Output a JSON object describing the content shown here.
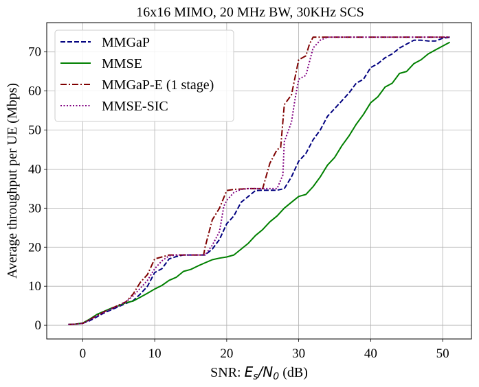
{
  "chart_data": {
    "type": "line",
    "title": "16x16 MIMO, 20 MHz BW, 30KHz SCS",
    "xlabel_prefix": "SNR: ",
    "xlabel_math_main": "E",
    "xlabel_math_sub1": "s",
    "xlabel_math_sep": "/",
    "xlabel_math_main2": "N",
    "xlabel_math_sub2": "0",
    "xlabel_suffix": " (dB)",
    "ylabel": "Average throughput per UE (Mbps)",
    "xlim": [
      -5,
      54
    ],
    "ylim": [
      -3.5,
      77.5
    ],
    "xticks": [
      0,
      10,
      20,
      30,
      40,
      50
    ],
    "yticks": [
      0,
      10,
      20,
      30,
      40,
      50,
      60,
      70
    ],
    "grid": true,
    "legend_position": "top-left",
    "series": [
      {
        "name": "MMGaP",
        "color": "#00007f",
        "dash": "dashed",
        "x": [
          -2,
          -1,
          0,
          1,
          2,
          3,
          4,
          5,
          6,
          7,
          8,
          9,
          10,
          11,
          12,
          13,
          14,
          15,
          16,
          17,
          18,
          19,
          20,
          21,
          22,
          23,
          24,
          25,
          26,
          27,
          28,
          29,
          30,
          31,
          32,
          33,
          34,
          35,
          36,
          37,
          38,
          39,
          40,
          41,
          42,
          43,
          44,
          45,
          46,
          47,
          48,
          49,
          50,
          51
        ],
        "y": [
          0.2,
          0.3,
          0.5,
          1.2,
          2.2,
          3.2,
          4.0,
          4.8,
          5.6,
          6.3,
          8.0,
          10.0,
          13.5,
          14.5,
          17.0,
          17.6,
          18.0,
          18.0,
          18.0,
          18.0,
          19.5,
          22.0,
          26.0,
          28.0,
          31.5,
          33.0,
          34.5,
          34.6,
          34.6,
          34.6,
          35.0,
          38.0,
          42.0,
          44.0,
          47.5,
          50.0,
          53.5,
          55.5,
          57.5,
          59.5,
          62.0,
          63.0,
          66.0,
          67.0,
          68.5,
          69.5,
          71.0,
          72.0,
          73.0,
          73.0,
          72.8,
          72.8,
          73.5,
          73.8
        ]
      },
      {
        "name": "MMSE",
        "color": "#008000",
        "dash": "solid",
        "x": [
          -2,
          -1,
          0,
          1,
          2,
          3,
          4,
          5,
          6,
          7,
          8,
          9,
          10,
          11,
          12,
          13,
          14,
          15,
          16,
          17,
          18,
          19,
          20,
          21,
          22,
          23,
          24,
          25,
          26,
          27,
          28,
          29,
          30,
          31,
          32,
          33,
          34,
          35,
          36,
          37,
          38,
          39,
          40,
          41,
          42,
          43,
          44,
          45,
          46,
          47,
          48,
          49,
          50,
          51
        ],
        "y": [
          0.2,
          0.3,
          0.6,
          1.6,
          2.8,
          3.6,
          4.4,
          5.0,
          5.8,
          6.2,
          7.2,
          8.2,
          9.3,
          10.2,
          11.5,
          12.3,
          13.8,
          14.3,
          15.2,
          16.0,
          16.8,
          17.2,
          17.5,
          18.0,
          19.5,
          21.0,
          23.0,
          24.5,
          26.5,
          28.0,
          30.0,
          31.5,
          33.0,
          33.5,
          35.5,
          38.0,
          41.0,
          43.0,
          46.0,
          48.5,
          51.5,
          54.0,
          57.0,
          58.5,
          61.0,
          62.0,
          64.5,
          65.0,
          67.0,
          68.0,
          69.5,
          70.5,
          71.5,
          72.5
        ]
      },
      {
        "name": "MMGaP-E (1 stage)",
        "color": "#7f0000",
        "dash": "dashdot",
        "x": [
          -2,
          -1,
          0,
          1,
          2,
          3,
          4,
          5,
          6,
          7,
          8,
          9,
          10,
          11,
          12,
          13,
          14,
          15,
          16,
          16.8,
          17,
          18,
          19,
          20,
          21,
          22,
          23,
          24,
          25,
          26,
          27,
          27.5,
          28,
          29,
          30,
          31,
          31.5,
          32,
          33,
          34,
          35,
          36,
          37,
          38,
          39,
          40,
          41,
          42,
          43,
          44,
          45,
          46,
          47,
          48,
          49,
          50,
          51
        ],
        "y": [
          0.2,
          0.3,
          0.5,
          1.5,
          2.5,
          3.5,
          4.3,
          5.2,
          6.0,
          8.0,
          11.0,
          13.0,
          17.0,
          17.5,
          18.0,
          18.0,
          18.0,
          18.0,
          18.0,
          18.0,
          20.0,
          27.0,
          30.0,
          34.5,
          34.8,
          34.9,
          35.0,
          35.0,
          35.0,
          41.5,
          45.0,
          45.5,
          56.5,
          59.0,
          68.0,
          69.0,
          72.0,
          73.8,
          73.8,
          73.8,
          73.8,
          73.8,
          73.8,
          73.8,
          73.8,
          73.8,
          73.8,
          73.8,
          73.8,
          73.8,
          73.8,
          73.8,
          73.8,
          73.8,
          73.8,
          73.8,
          73.8
        ]
      },
      {
        "name": "MMSE-SIC",
        "color": "#800080",
        "dash": "dotted",
        "x": [
          -2,
          -1,
          0,
          1,
          2,
          3,
          4,
          5,
          6,
          7,
          8,
          9,
          10,
          11,
          12,
          13,
          14,
          15,
          16,
          17,
          18,
          19,
          19.6,
          20,
          21,
          22,
          23,
          24,
          25,
          26,
          27,
          27.8,
          28,
          29,
          29.5,
          30,
          31,
          32,
          33,
          34,
          35,
          36,
          37,
          38,
          39,
          40,
          41,
          42,
          43,
          44,
          45,
          46,
          47,
          48,
          49,
          50,
          51
        ],
        "y": [
          0.2,
          0.3,
          0.5,
          1.4,
          2.4,
          3.4,
          4.2,
          5.0,
          6.0,
          7.5,
          9.5,
          11.5,
          14.5,
          16.5,
          17.8,
          18.0,
          18.0,
          18.0,
          18.0,
          18.0,
          20.5,
          24.0,
          30.5,
          32.0,
          34.0,
          34.8,
          35.0,
          35.0,
          35.0,
          35.0,
          35.0,
          38.5,
          47.0,
          52.0,
          58.0,
          63.0,
          64.0,
          71.0,
          73.0,
          73.8,
          73.8,
          73.8,
          73.8,
          73.8,
          73.8,
          73.8,
          73.8,
          73.8,
          73.8,
          73.8,
          73.8,
          73.8,
          73.8,
          73.8,
          73.8,
          73.8,
          73.8
        ]
      }
    ]
  }
}
